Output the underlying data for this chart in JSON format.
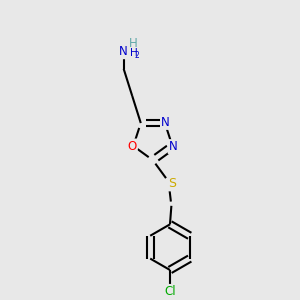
{
  "bg_color": "#e8e8e8",
  "atom_colors": {
    "C": "#000000",
    "N": "#0000cc",
    "O": "#ff0000",
    "S": "#ccaa00",
    "Cl": "#00aa00",
    "H": "#5fa8a8"
  },
  "bond_color": "#000000",
  "bond_lw": 1.5,
  "figsize": [
    3.0,
    3.0
  ],
  "dpi": 100
}
